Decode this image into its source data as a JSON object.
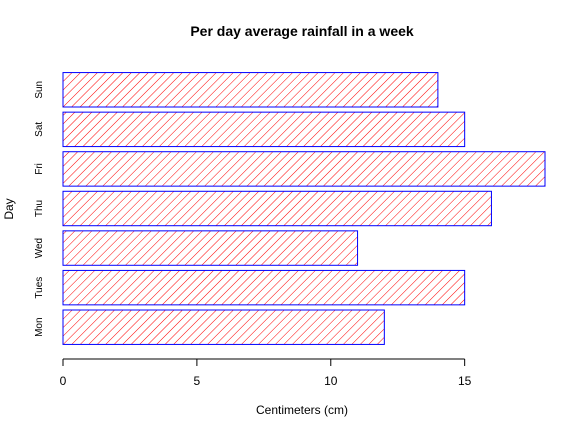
{
  "chart_data": {
    "type": "bar",
    "orientation": "horizontal",
    "title": "Per day average rainfall in a week",
    "xlabel": "Centimeters (cm)",
    "ylabel": "Day",
    "categories": [
      "Mon",
      "Tues",
      "Wed",
      "Thu",
      "Fri",
      "Sat",
      "Sun"
    ],
    "values": [
      12,
      15,
      11,
      16,
      18,
      15,
      14
    ],
    "xlim": [
      0,
      18
    ],
    "xticks": [
      0,
      5,
      10,
      15
    ],
    "grid": false,
    "bar_fill": "hatched",
    "bar_border_color": "#0000ff",
    "hatch_color": "#ff0000"
  }
}
